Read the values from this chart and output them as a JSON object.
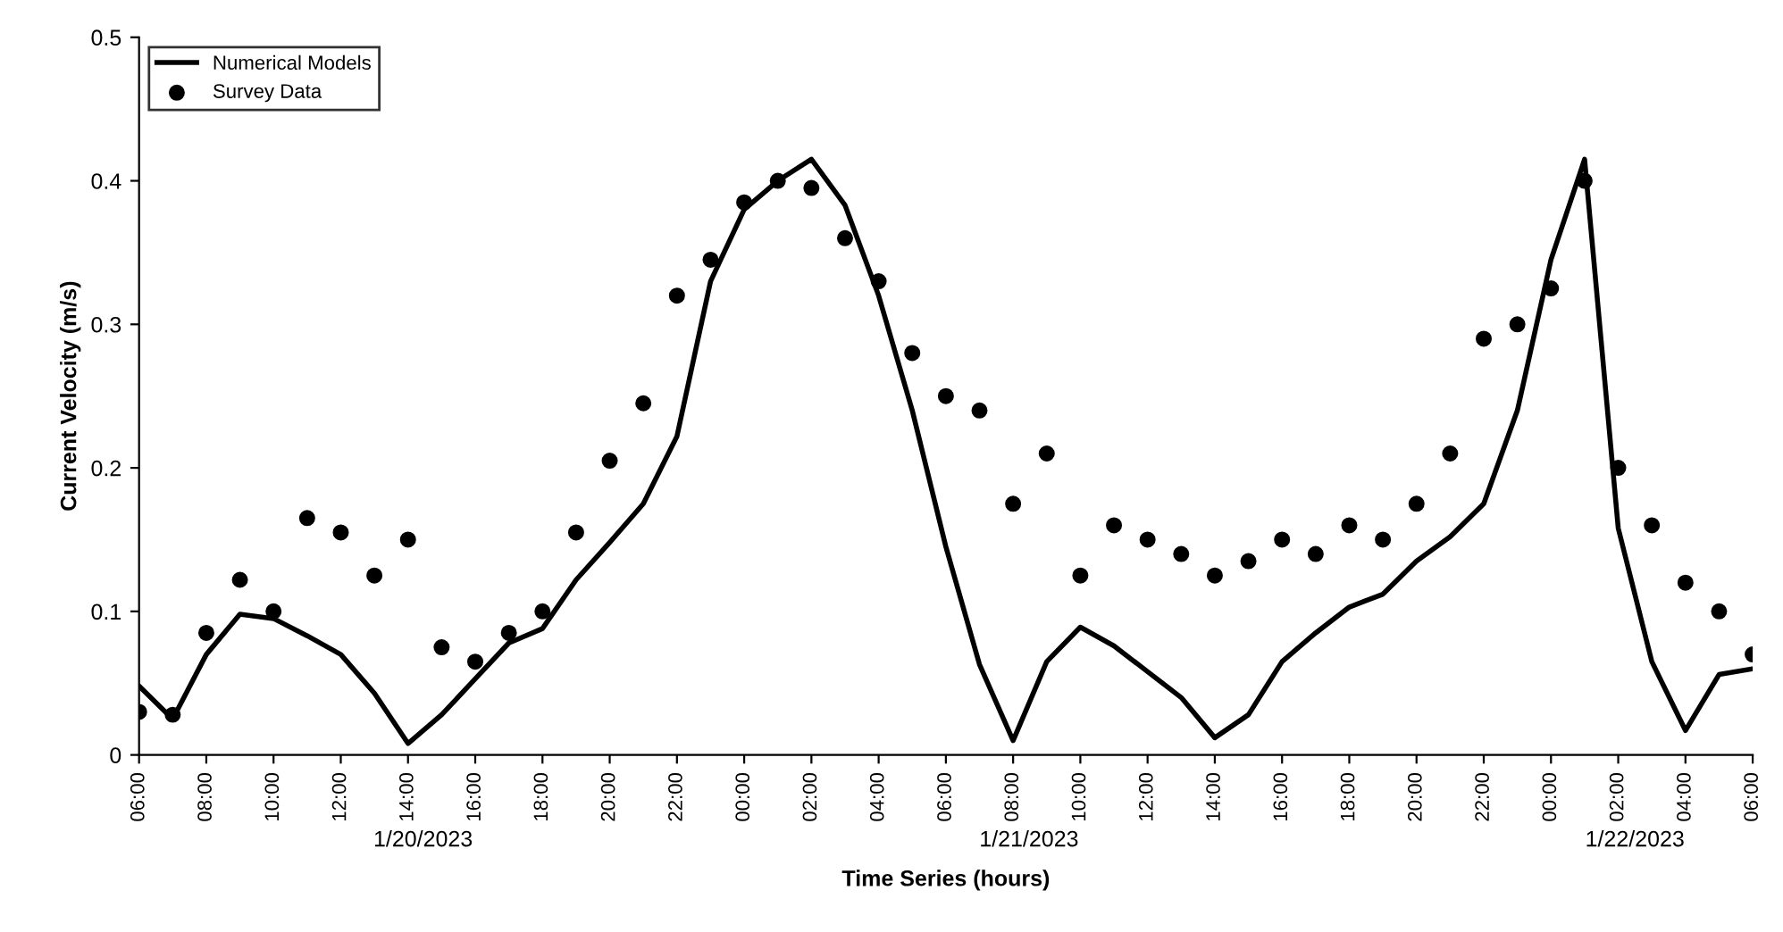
{
  "chart_data": {
    "type": "line",
    "xlabel": "Time Series (hours)",
    "ylabel": "Current Velocity (m/s)",
    "x": [
      "2023-01-20T06:00",
      "2023-01-20T07:00",
      "2023-01-20T08:00",
      "2023-01-20T09:00",
      "2023-01-20T10:00",
      "2023-01-20T11:00",
      "2023-01-20T12:00",
      "2023-01-20T13:00",
      "2023-01-20T14:00",
      "2023-01-20T15:00",
      "2023-01-20T16:00",
      "2023-01-20T17:00",
      "2023-01-20T18:00",
      "2023-01-20T19:00",
      "2023-01-20T20:00",
      "2023-01-20T21:00",
      "2023-01-20T22:00",
      "2023-01-20T23:00",
      "2023-01-21T00:00",
      "2023-01-21T01:00",
      "2023-01-21T02:00",
      "2023-01-21T03:00",
      "2023-01-21T04:00",
      "2023-01-21T05:00",
      "2023-01-21T06:00",
      "2023-01-21T07:00",
      "2023-01-21T08:00",
      "2023-01-21T09:00",
      "2023-01-21T10:00",
      "2023-01-21T11:00",
      "2023-01-21T12:00",
      "2023-01-21T13:00",
      "2023-01-21T14:00",
      "2023-01-21T15:00",
      "2023-01-21T16:00",
      "2023-01-21T17:00",
      "2023-01-21T18:00",
      "2023-01-21T19:00",
      "2023-01-21T20:00",
      "2023-01-21T21:00",
      "2023-01-21T22:00",
      "2023-01-21T23:00",
      "2023-01-22T00:00",
      "2023-01-22T01:00",
      "2023-01-22T02:00",
      "2023-01-22T03:00",
      "2023-01-22T04:00",
      "2023-01-22T05:00",
      "2023-01-22T06:00"
    ],
    "series": [
      {
        "name": "Numerical Models",
        "color": "#000000",
        "marker": "none",
        "values": [
          0.048,
          0.025,
          0.07,
          0.098,
          0.095,
          0.083,
          0.07,
          0.043,
          0.008,
          0.028,
          0.053,
          0.078,
          0.088,
          0.122,
          0.148,
          0.175,
          0.222,
          0.33,
          0.38,
          0.4,
          0.415,
          0.383,
          0.32,
          0.24,
          0.145,
          0.063,
          0.01,
          0.065,
          0.089,
          0.076,
          0.058,
          0.04,
          0.012,
          0.028,
          0.065,
          0.085,
          0.103,
          0.112,
          0.135,
          0.152,
          0.175,
          0.24,
          0.345,
          0.415,
          0.158,
          0.065,
          0.017,
          0.056,
          0.06
        ]
      },
      {
        "name": "Survey Data",
        "type": "scatter",
        "color": "#000000",
        "marker": "circle",
        "values": [
          0.03,
          0.028,
          0.085,
          0.122,
          0.1,
          0.165,
          0.155,
          0.125,
          0.15,
          0.075,
          0.065,
          0.085,
          0.1,
          0.155,
          0.205,
          0.245,
          0.32,
          0.345,
          0.385,
          0.4,
          0.395,
          0.36,
          0.33,
          0.28,
          0.25,
          0.24,
          0.175,
          0.21,
          0.125,
          0.16,
          0.15,
          0.14,
          0.125,
          0.135,
          0.15,
          0.14,
          0.16,
          0.15,
          0.175,
          0.21,
          0.29,
          0.3,
          0.325,
          0.4,
          0.2,
          0.16,
          0.12,
          0.1,
          0.07
        ]
      }
    ],
    "xlim": [
      "2023-01-20T06:00",
      "2023-01-22T06:00"
    ],
    "xticks": [
      {
        "value": "2023-01-20T06:00",
        "label": "06:00"
      },
      {
        "value": "2023-01-20T08:00",
        "label": "08:00"
      },
      {
        "value": "2023-01-20T10:00",
        "label": "10:00"
      },
      {
        "value": "2023-01-20T12:00",
        "label": "12:00"
      },
      {
        "value": "2023-01-20T14:00",
        "label": "14:00"
      },
      {
        "value": "2023-01-20T16:00",
        "label": "16:00"
      },
      {
        "value": "2023-01-20T18:00",
        "label": "18:00"
      },
      {
        "value": "2023-01-20T20:00",
        "label": "20:00"
      },
      {
        "value": "2023-01-20T22:00",
        "label": "22:00"
      },
      {
        "value": "2023-01-21T00:00",
        "label": "00:00"
      },
      {
        "value": "2023-01-21T02:00",
        "label": "02:00"
      },
      {
        "value": "2023-01-21T04:00",
        "label": "04:00"
      },
      {
        "value": "2023-01-21T06:00",
        "label": "06:00"
      },
      {
        "value": "2023-01-21T08:00",
        "label": "08:00"
      },
      {
        "value": "2023-01-21T10:00",
        "label": "10:00"
      },
      {
        "value": "2023-01-21T12:00",
        "label": "12:00"
      },
      {
        "value": "2023-01-21T14:00",
        "label": "14:00"
      },
      {
        "value": "2023-01-21T16:00",
        "label": "16:00"
      },
      {
        "value": "2023-01-21T18:00",
        "label": "18:00"
      },
      {
        "value": "2023-01-21T20:00",
        "label": "20:00"
      },
      {
        "value": "2023-01-21T22:00",
        "label": "22:00"
      },
      {
        "value": "2023-01-22T00:00",
        "label": "00:00"
      },
      {
        "value": "2023-01-22T02:00",
        "label": "02:00"
      },
      {
        "value": "2023-01-22T04:00",
        "label": "04:00"
      },
      {
        "value": "2023-01-22T06:00",
        "label": "06:00"
      }
    ],
    "ylim": [
      0,
      0.5
    ],
    "yticks": [
      0,
      0.1,
      0.2,
      0.3,
      0.4,
      0.5
    ],
    "grid": false,
    "legend": "top left",
    "annotations": [
      "1/20/2023",
      "1/21/2023",
      "1/22/2023"
    ]
  }
}
